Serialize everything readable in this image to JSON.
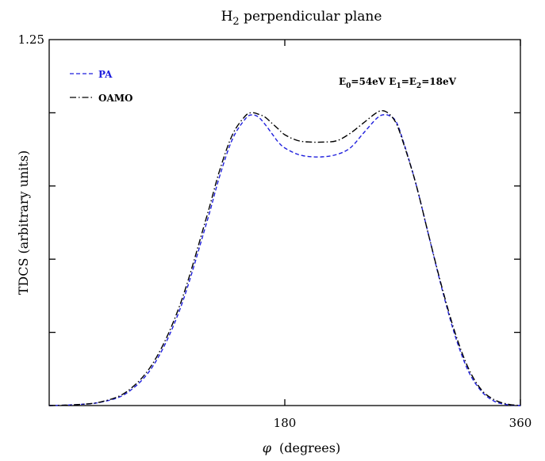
{
  "chart_data": {
    "type": "line",
    "title": "H",
    "title_sub": "2",
    "title_rest": " perpendicular plane",
    "xlabel_symbol": "φ",
    "xlabel_text": "(degrees)",
    "ylabel": "TDCS (arbitrary units)",
    "xlim": [
      0,
      360
    ],
    "ylim": [
      0,
      1.25
    ],
    "x_ticks": [
      {
        "value": 180,
        "label": "180"
      },
      {
        "value": 360,
        "label": "360"
      }
    ],
    "y_tick_values": [
      0.25,
      0.5,
      0.75,
      1.0
    ],
    "y_tick_labels": [
      {
        "value": 1.25,
        "label": "1.25"
      }
    ],
    "grid": false,
    "legend_position": "top-left",
    "annotation": {
      "parts": [
        {
          "t": "E",
          "sub": false
        },
        {
          "t": "0",
          "sub": true
        },
        {
          "t": "=54eV  E",
          "sub": false
        },
        {
          "t": "1",
          "sub": true
        },
        {
          "t": "=E",
          "sub": false
        },
        {
          "t": "2",
          "sub": true
        },
        {
          "t": "=18eV",
          "sub": false
        }
      ]
    },
    "series": [
      {
        "name": "PA",
        "color": "#1f1fdd",
        "dash": "dashed",
        "points": [
          [
            0,
            0.0
          ],
          [
            20,
            0.003
          ],
          [
            40,
            0.012
          ],
          [
            60,
            0.045
          ],
          [
            80,
            0.14
          ],
          [
            100,
            0.33
          ],
          [
            120,
            0.62
          ],
          [
            130,
            0.78
          ],
          [
            140,
            0.91
          ],
          [
            150,
            0.98
          ],
          [
            155,
            0.993
          ],
          [
            160,
            0.985
          ],
          [
            165,
            0.96
          ],
          [
            170,
            0.93
          ],
          [
            175,
            0.9
          ],
          [
            180,
            0.88
          ],
          [
            190,
            0.858
          ],
          [
            200,
            0.85
          ],
          [
            210,
            0.85
          ],
          [
            220,
            0.858
          ],
          [
            230,
            0.88
          ],
          [
            240,
            0.93
          ],
          [
            250,
            0.98
          ],
          [
            255,
            0.993
          ],
          [
            260,
            0.99
          ],
          [
            265,
            0.97
          ],
          [
            270,
            0.91
          ],
          [
            280,
            0.76
          ],
          [
            290,
            0.58
          ],
          [
            300,
            0.4
          ],
          [
            310,
            0.24
          ],
          [
            320,
            0.12
          ],
          [
            330,
            0.05
          ],
          [
            340,
            0.015
          ],
          [
            350,
            0.003
          ],
          [
            360,
            0.0
          ]
        ]
      },
      {
        "name": "OAMO",
        "color": "#000000",
        "dash": "dashdot",
        "points": [
          [
            0,
            0.0
          ],
          [
            20,
            0.003
          ],
          [
            40,
            0.013
          ],
          [
            60,
            0.05
          ],
          [
            80,
            0.15
          ],
          [
            100,
            0.345
          ],
          [
            120,
            0.64
          ],
          [
            130,
            0.8
          ],
          [
            140,
            0.925
          ],
          [
            150,
            0.99
          ],
          [
            155,
            1.0
          ],
          [
            160,
            0.995
          ],
          [
            165,
            0.985
          ],
          [
            170,
            0.965
          ],
          [
            175,
            0.945
          ],
          [
            180,
            0.925
          ],
          [
            190,
            0.905
          ],
          [
            200,
            0.9
          ],
          [
            210,
            0.9
          ],
          [
            220,
            0.905
          ],
          [
            230,
            0.93
          ],
          [
            240,
            0.965
          ],
          [
            250,
            1.0
          ],
          [
            255,
            1.007
          ],
          [
            260,
            0.995
          ],
          [
            265,
            0.965
          ],
          [
            270,
            0.905
          ],
          [
            280,
            0.76
          ],
          [
            290,
            0.58
          ],
          [
            300,
            0.405
          ],
          [
            310,
            0.25
          ],
          [
            320,
            0.13
          ],
          [
            330,
            0.055
          ],
          [
            340,
            0.02
          ],
          [
            350,
            0.005
          ],
          [
            360,
            0.0
          ]
        ]
      }
    ]
  }
}
